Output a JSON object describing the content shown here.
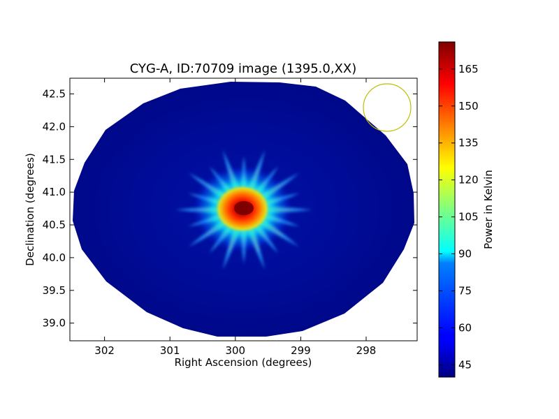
{
  "chart_data": {
    "type": "heatmap",
    "title": "CYG-A, ID:70709 image (1395.0,XX)",
    "xlabel": "Right Ascension (degrees)",
    "ylabel": "Declination (degrees)",
    "x_axis_reversed": true,
    "xlim": [
      302.53,
      297.22
    ],
    "ylim": [
      38.73,
      42.74
    ],
    "x_ticks": [
      302,
      301,
      300,
      299,
      298
    ],
    "x_tick_labels": [
      "302",
      "301",
      "300",
      "299",
      "298"
    ],
    "y_ticks": [
      39.0,
      39.5,
      40.0,
      40.5,
      41.0,
      41.5,
      42.0,
      42.5
    ],
    "y_tick_labels": [
      "39.0",
      "39.5",
      "40.0",
      "40.5",
      "41.0",
      "41.5",
      "42.0",
      "42.5"
    ],
    "colormap": "jet",
    "colorbar": {
      "label": "Power in Kelvin",
      "range": [
        40,
        176
      ],
      "ticks": [
        45,
        60,
        75,
        90,
        105,
        120,
        135,
        150,
        165
      ],
      "tick_labels": [
        "45",
        "60",
        "75",
        "90",
        "105",
        "120",
        "135",
        "150",
        "165"
      ]
    },
    "field_of_view": {
      "shape": "ellipse",
      "center_ra": 299.9,
      "center_dec": 40.73,
      "radius_ra": 2.6,
      "radius_dec": 2.0,
      "background_value": 43
    },
    "source": {
      "name": "CYG-A",
      "ra": 299.87,
      "dec": 40.73,
      "peak_value": 176,
      "spokes": 20
    },
    "beam": {
      "shape": "circle",
      "center_ra": 297.67,
      "center_dec": 42.29,
      "radius_dec": 0.37,
      "color": "#bfbf00"
    },
    "grid": false
  }
}
